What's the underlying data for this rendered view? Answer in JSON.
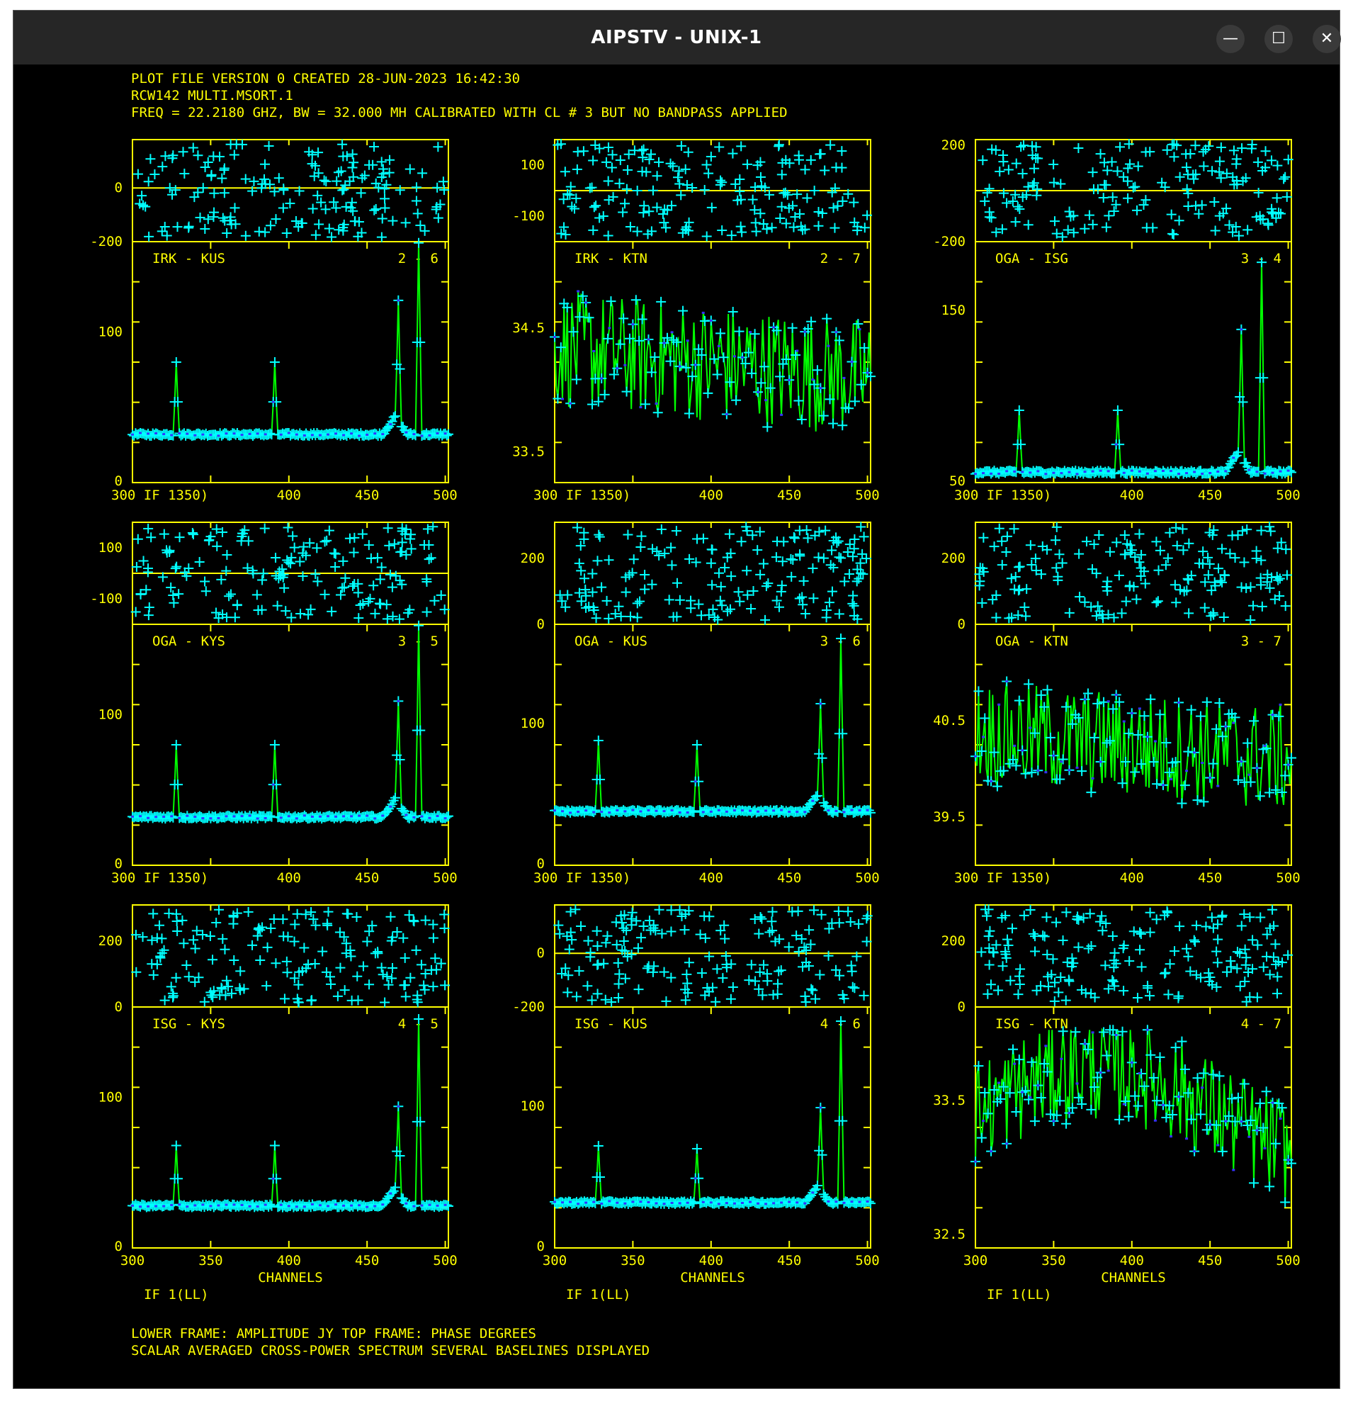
{
  "window": {
    "title": "AIPSTV - UNIX-1",
    "buttons": {
      "minimize": "—",
      "maximize": "☐",
      "close": "✕"
    }
  },
  "colors": {
    "frame": "#ffff00",
    "data": "#00ffff",
    "line": "#00ff00",
    "text": "#ffff00",
    "marker": "#3333ff"
  },
  "header": {
    "line1": "PLOT FILE VERSION 0  CREATED 28-JUN-2023 16:42:30",
    "line2": "RCW142   MULTI.MSORT.1",
    "line3": "FREQ = 22.2180 GHZ, BW = 32.000 MH   CALIBRATED WITH CL # 3 BUT NO BANDPASS APPLIED"
  },
  "footer": {
    "line1": "LOWER FRAME: AMPLITUDE JY   TOP FRAME: PHASE DEGREES",
    "line2": "SCALAR AVERAGED CROSS-POWER SPECTRUM     SEVERAL BASELINES DISPLAYED"
  },
  "channels_label": "CHANNELS",
  "if_label": "IF 1(LL)",
  "chart_data": [
    {
      "type": "line",
      "baseline": "IRK - KUS",
      "antennas": "2 - 6",
      "x_range": [
        300,
        502
      ],
      "amp_ticks": [
        "0",
        "100"
      ],
      "amp_range": [
        0,
        160
      ],
      "phase_ticks": [
        "0",
        "-200"
      ],
      "phase_range": [
        -200,
        180
      ],
      "x_ticks": [
        "300 IF 1350)",
        "400",
        "450",
        "500"
      ],
      "profile": "peaks",
      "baseline_amp": 32,
      "peaks": [
        {
          "x": 328,
          "amp": 80
        },
        {
          "x": 391,
          "amp": 80
        },
        {
          "x": 470,
          "amp": 112
        },
        {
          "x": 483,
          "amp": 168
        }
      ],
      "noise": 2
    },
    {
      "type": "line",
      "baseline": "IRK - KTN",
      "antennas": "2 - 7",
      "x_range": [
        300,
        502
      ],
      "amp_ticks": [
        "34.5",
        "33.5"
      ],
      "amp_range": [
        33.25,
        35.2
      ],
      "phase_ticks": [
        "100",
        "-100"
      ],
      "phase_range": [
        -200,
        200
      ],
      "x_ticks": [
        "300 IF 1350)",
        "400",
        "450",
        "500"
      ],
      "profile": "noise",
      "baseline_amp": 34.1,
      "noise": 0.3,
      "peaks": []
    },
    {
      "type": "line",
      "baseline": "OGA - ISG",
      "antennas": "3 - 4",
      "x_range": [
        300,
        502
      ],
      "amp_ticks": [
        "50",
        "150"
      ],
      "amp_range": [
        50,
        190
      ],
      "phase_ticks": [
        "200",
        "-200"
      ],
      "phase_range": [
        -200,
        200
      ],
      "x_ticks": [
        "300 IF 1350)",
        "400",
        "450",
        "500"
      ],
      "profile": "peaks",
      "baseline_amp": 56,
      "peaks": [
        {
          "x": 328,
          "amp": 92
        },
        {
          "x": 391,
          "amp": 92
        },
        {
          "x": 470,
          "amp": 130
        },
        {
          "x": 483,
          "amp": 178
        }
      ],
      "noise": 2
    },
    {
      "type": "line",
      "baseline": "OGA - KYS",
      "antennas": "3 - 5",
      "x_range": [
        300,
        502
      ],
      "amp_ticks": [
        "0",
        "100"
      ],
      "amp_range": [
        0,
        160
      ],
      "phase_ticks": [
        "100",
        "-100"
      ],
      "phase_range": [
        -200,
        200
      ],
      "x_ticks": [
        "300 IF 1350)",
        "400",
        "450",
        "500"
      ],
      "profile": "peaks",
      "baseline_amp": 32,
      "peaks": [
        {
          "x": 328,
          "amp": 80
        },
        {
          "x": 391,
          "amp": 80
        },
        {
          "x": 470,
          "amp": 100
        },
        {
          "x": 483,
          "amp": 160
        }
      ],
      "noise": 2
    },
    {
      "type": "line",
      "baseline": "OGA - KUS",
      "antennas": "3 - 6",
      "x_range": [
        300,
        502
      ],
      "amp_ticks": [
        "0",
        "100"
      ],
      "amp_range": [
        0,
        170
      ],
      "phase_ticks": [
        "200",
        "0"
      ],
      "phase_range": [
        0,
        310
      ],
      "x_ticks": [
        "300 IF 1350)",
        "400",
        "450",
        "500"
      ],
      "profile": "peaks",
      "baseline_amp": 38,
      "peaks": [
        {
          "x": 328,
          "amp": 88
        },
        {
          "x": 391,
          "amp": 85
        },
        {
          "x": 470,
          "amp": 105
        },
        {
          "x": 483,
          "amp": 160
        }
      ],
      "noise": 2
    },
    {
      "type": "line",
      "baseline": "OGA - KTN",
      "antennas": "3 - 7",
      "x_range": [
        300,
        502
      ],
      "amp_ticks": [
        "40.5",
        "39.5"
      ],
      "amp_range": [
        39.0,
        41.5
      ],
      "phase_ticks": [
        "200",
        "0"
      ],
      "phase_range": [
        0,
        310
      ],
      "x_ticks": [
        "300 IF 1350)",
        "400",
        "450",
        "500"
      ],
      "profile": "noise",
      "baseline_amp": 40.1,
      "noise": 0.35,
      "peaks": []
    },
    {
      "type": "line",
      "baseline": "ISG - KYS",
      "antennas": "4 - 5",
      "x_range": [
        300,
        502
      ],
      "amp_ticks": [
        "0",
        "100"
      ],
      "amp_range": [
        0,
        160
      ],
      "phase_ticks": [
        "200",
        "0"
      ],
      "phase_range": [
        0,
        310
      ],
      "x_ticks": [
        "300",
        "350",
        "400",
        "450",
        "500"
      ],
      "profile": "peaks",
      "baseline_amp": 28,
      "peaks": [
        {
          "x": 328,
          "amp": 68
        },
        {
          "x": 391,
          "amp": 68
        },
        {
          "x": 470,
          "amp": 85
        },
        {
          "x": 483,
          "amp": 152
        }
      ],
      "noise": 2
    },
    {
      "type": "line",
      "baseline": "ISG - KUS",
      "antennas": "4 - 6",
      "x_range": [
        300,
        502
      ],
      "amp_ticks": [
        "0",
        "100"
      ],
      "amp_range": [
        0,
        170
      ],
      "phase_ticks": [
        "0",
        "-200"
      ],
      "phase_range": [
        -200,
        180
      ],
      "x_ticks": [
        "300",
        "350",
        "400",
        "450",
        "500"
      ],
      "profile": "peaks",
      "baseline_amp": 32,
      "peaks": [
        {
          "x": 328,
          "amp": 72
        },
        {
          "x": 391,
          "amp": 70
        },
        {
          "x": 470,
          "amp": 90
        },
        {
          "x": 483,
          "amp": 160
        }
      ],
      "noise": 2
    },
    {
      "type": "line",
      "baseline": "ISG - KTN",
      "antennas": "4 - 7",
      "x_range": [
        300,
        502
      ],
      "amp_ticks": [
        "33.5",
        "32.5"
      ],
      "amp_range": [
        32.4,
        34.2
      ],
      "phase_ticks": [
        "200",
        "0"
      ],
      "phase_range": [
        0,
        310
      ],
      "x_ticks": [
        "300",
        "350",
        "400",
        "450",
        "500"
      ],
      "profile": "wave",
      "baseline_amp": 33.4,
      "noise": 0.25,
      "peaks": []
    }
  ]
}
